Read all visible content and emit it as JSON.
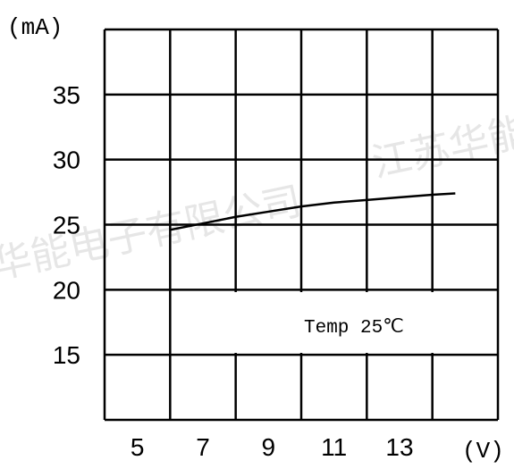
{
  "chart_data": {
    "type": "line",
    "title": "",
    "xlabel": "",
    "ylabel": "",
    "x_unit": "(V)",
    "y_unit": "(mA)",
    "x_ticks": [
      5,
      7,
      9,
      11,
      13
    ],
    "y_ticks": [
      15,
      20,
      25,
      30,
      35
    ],
    "xlim": [
      4,
      16
    ],
    "ylim": [
      10,
      40
    ],
    "grid": true,
    "series": [
      {
        "x": [
          6,
          7,
          8,
          9,
          10,
          11,
          12,
          13,
          14,
          14.7
        ],
        "y": [
          24.6,
          25.1,
          25.6,
          26.0,
          26.4,
          26.7,
          26.9,
          27.1,
          27.3,
          27.4
        ]
      }
    ],
    "annotation": "Temp 25℃",
    "watermark": "江苏华能电子有限公司",
    "line_color": "#000000"
  }
}
